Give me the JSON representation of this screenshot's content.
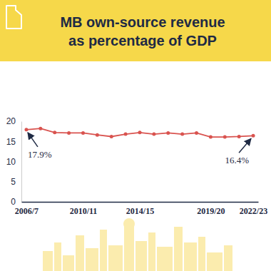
{
  "chart_data": {
    "type": "line",
    "title": "MB own-source revenue\nas percentage of GDP",
    "categories": [
      "2006/7",
      null,
      null,
      null,
      "2010/11",
      null,
      null,
      null,
      "2014/15",
      null,
      null,
      null,
      null,
      "2019/20",
      null,
      null,
      "2022/23"
    ],
    "values": [
      17.9,
      18.2,
      17.2,
      17.1,
      17.1,
      16.6,
      16.2,
      16.8,
      17.2,
      16.8,
      17.1,
      16.8,
      17.1,
      16.1,
      16.1,
      16.2,
      16.4
    ],
    "color": "#d9534f",
    "ylim": [
      0,
      20
    ],
    "yticks": [
      0,
      5,
      10,
      15,
      20
    ],
    "grid": false,
    "marker": "circle",
    "annotations": [
      "17.9%",
      "16.4%"
    ]
  }
}
